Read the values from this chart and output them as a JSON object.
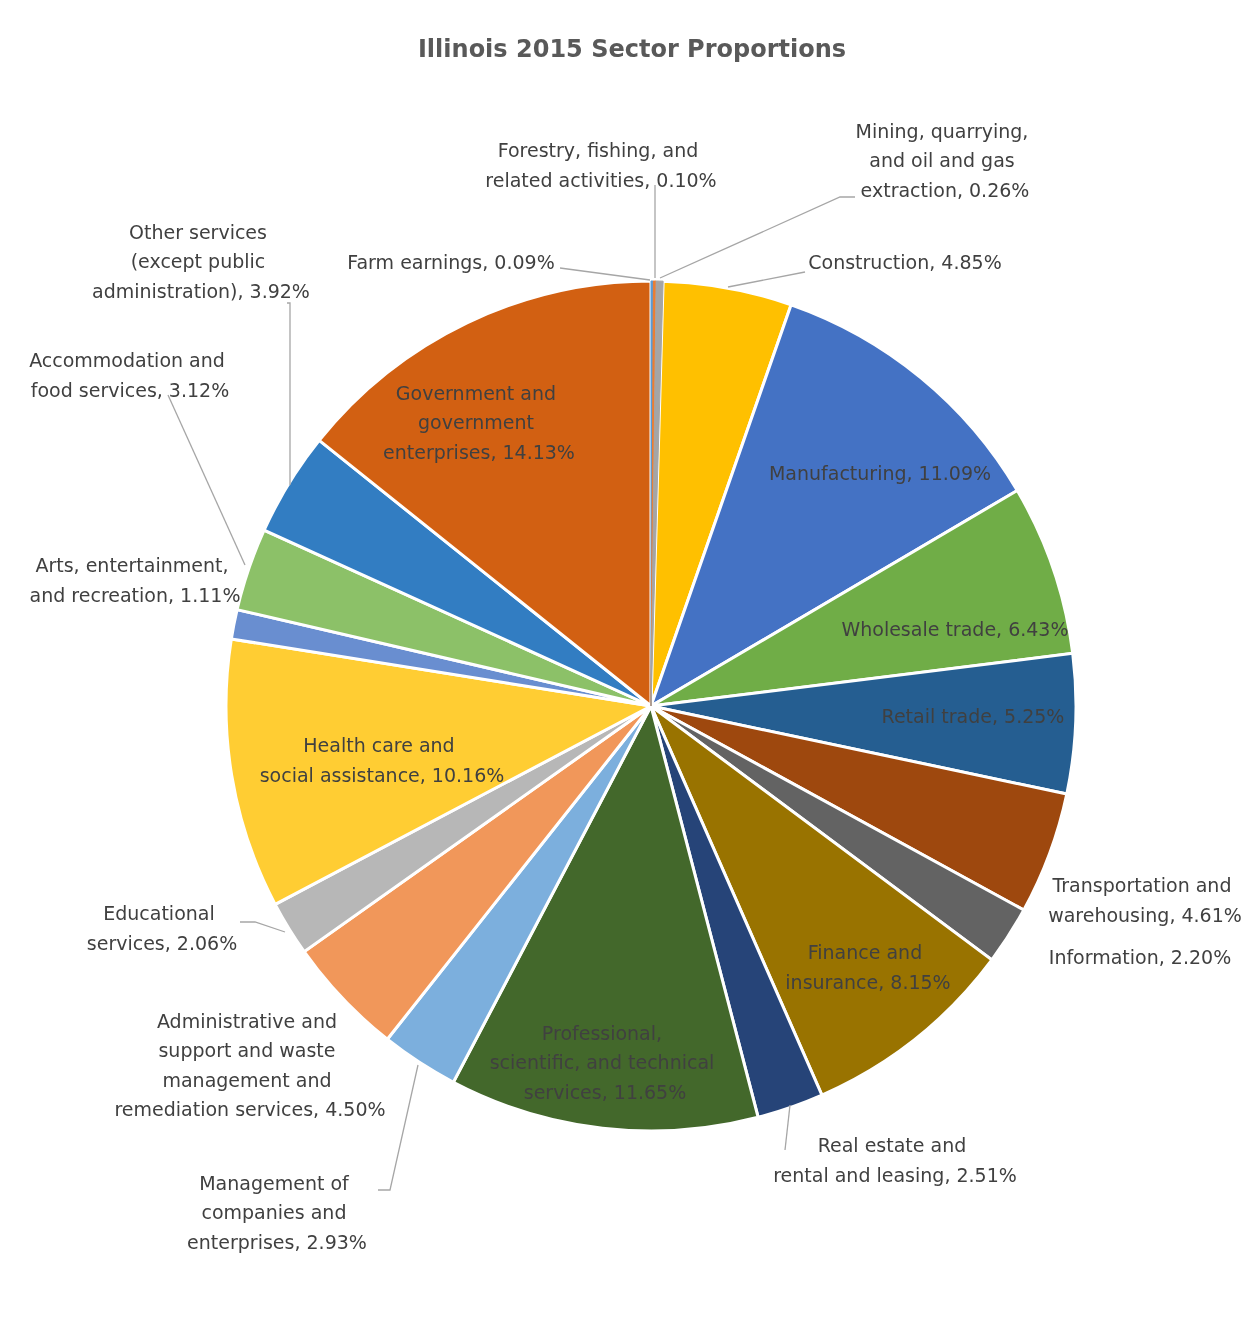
{
  "chart_data": {
    "type": "pie",
    "title": "Illinois 2015 Sector Proportions",
    "categories": [
      "Farm earnings",
      "Forestry, fishing, and related activities",
      "Mining, quarrying, and oil and gas extraction",
      "Construction",
      "Manufacturing",
      "Wholesale trade",
      "Retail trade",
      "Transportation and warehousing",
      "Information",
      "Finance and insurance",
      "Real estate and rental and leasing",
      "Professional, scientific, and technical services",
      "Management of companies and enterprises",
      "Administrative and support and waste management and remediation services",
      "Educational services",
      "Health care and social assistance",
      "Arts, entertainment, and recreation",
      "Accommodation and food services",
      "Other services (except public administration)",
      "Government and government enterprises"
    ],
    "values": [
      0.09,
      0.1,
      0.26,
      4.85,
      11.09,
      6.43,
      5.25,
      4.61,
      2.2,
      8.15,
      2.51,
      11.65,
      2.93,
      4.5,
      2.06,
      10.16,
      1.11,
      3.12,
      3.92,
      14.13
    ],
    "value_labels": [
      "0.09%",
      "0.10%",
      "0.26%",
      "4.85%",
      "11.09%",
      "6.43%",
      "5.25%",
      "4.61%",
      "2.20%",
      "8.15%",
      "2.51%",
      "11.65%",
      "2.93%",
      "4.50%",
      "2.06%",
      "10.16%",
      "1.11%",
      "3.12%",
      "3.92%",
      "14.13%"
    ],
    "colors": [
      "#5b9bd5",
      "#ed7d31",
      "#a5a5a5",
      "#ffc000",
      "#4472c4",
      "#70ad47",
      "#255e91",
      "#9e480e",
      "#636363",
      "#997300",
      "#264478",
      "#43682b",
      "#7cafdd",
      "#f1975a",
      "#b7b7b7",
      "#ffcd33",
      "#698ed0",
      "#8cc168",
      "#327dc2",
      "#d26012"
    ]
  }
}
